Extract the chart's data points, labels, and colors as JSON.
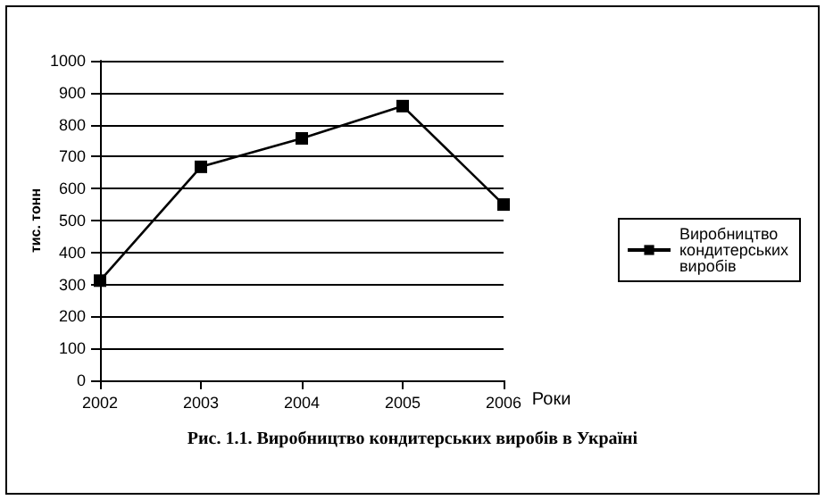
{
  "chart_data": {
    "type": "line",
    "title": "Рис. 1.1. Виробництво кондитерських виробів в Україні",
    "xlabel": "Роки",
    "ylabel": "тис. тонн",
    "categories": [
      "2002",
      "2003",
      "2004",
      "2005",
      "2006"
    ],
    "series": [
      {
        "name": "Виробництво кондитерських виробів",
        "color": "#000000",
        "values": [
          312,
          668,
          757,
          858,
          550
        ]
      }
    ],
    "ylim": [
      0,
      1000
    ],
    "yticks": [
      0,
      100,
      200,
      300,
      400,
      500,
      600,
      700,
      800,
      900,
      1000
    ],
    "grid": "y",
    "legend": "right",
    "marker": "square",
    "line_style": "solid"
  }
}
